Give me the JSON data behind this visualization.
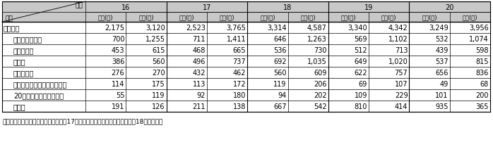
{
  "note": "注：つきまとい等に係る違反は、平成17年の風営適正化法の改正を踏まえ、18年以降計上",
  "rows": [
    [
      "総　　数",
      "2,175",
      "3,120",
      "2,523",
      "3,765",
      "3,314",
      "4,587",
      "3,340",
      "4,342",
      "3,249",
      "3,956"
    ],
    [
      "禁止区域等営業",
      "700",
      "1,255",
      "711",
      "1,411",
      "646",
      "1,263",
      "569",
      "1,102",
      "532",
      "1,074"
    ],
    [
      "年少者使用",
      "453",
      "615",
      "468",
      "665",
      "536",
      "730",
      "512",
      "713",
      "439",
      "598"
    ],
    [
      "客引き",
      "386",
      "560",
      "496",
      "737",
      "692",
      "1,035",
      "649",
      "1,020",
      "537",
      "815"
    ],
    [
      "無許可営業",
      "276",
      "270",
      "432",
      "462",
      "560",
      "609",
      "622",
      "757",
      "656",
      "836"
    ],
    [
      "構造設備・遊技機無承認変更",
      "114",
      "175",
      "113",
      "172",
      "119",
      "206",
      "69",
      "107",
      "49",
      "68"
    ],
    [
      "20歳未満客への酒類提供",
      "55",
      "119",
      "92",
      "180",
      "94",
      "202",
      "109",
      "229",
      "101",
      "200"
    ],
    [
      "その他",
      "191",
      "126",
      "211",
      "138",
      "667",
      "542",
      "810",
      "414",
      "935",
      "365"
    ]
  ],
  "years": [
    "16",
    "17",
    "18",
    "19",
    "20"
  ],
  "bg_header": "#c8c8c8",
  "bg_white": "#ffffff",
  "header_sub": [
    "件数(件)",
    "人員(人)"
  ],
  "label_indent": 14,
  "font_size_data": 7.0,
  "font_size_header": 7.0,
  "font_size_sub": 6.0,
  "font_size_note": 6.5,
  "font_size_corner": 6.5
}
